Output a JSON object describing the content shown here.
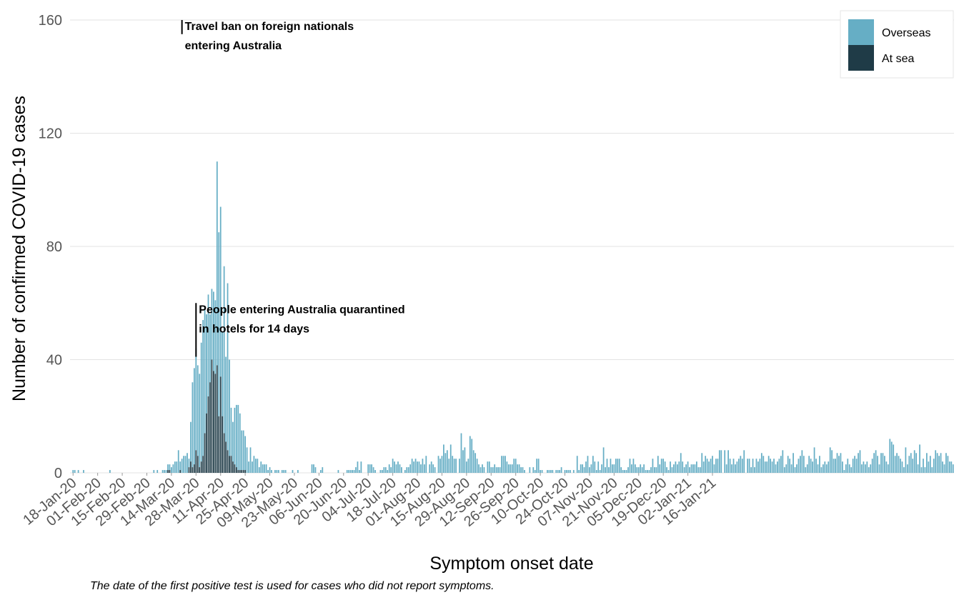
{
  "chart_data": {
    "type": "bar",
    "stacked": true,
    "xlabel": "Symptom onset date",
    "ylabel": "Number of confirmed COVID-19 cases",
    "ylim": [
      0,
      160
    ],
    "yticks": [
      0,
      40,
      80,
      120,
      160
    ],
    "grid": "horizontal",
    "legend_position": "top-right",
    "x_start": "2020-01-18",
    "x_tick_labels": [
      "18-Jan-20",
      "01-Feb-20",
      "15-Feb-20",
      "29-Feb-20",
      "14-Mar-20",
      "28-Mar-20",
      "11-Apr-20",
      "25-Apr-20",
      "09-May-20",
      "23-May-20",
      "06-Jun-20",
      "20-Jun-20",
      "04-Jul-20",
      "18-Jul-20",
      "01-Aug-20",
      "15-Aug-20",
      "29-Aug-20",
      "12-Sep-20",
      "26-Sep-20",
      "10-Oct-20",
      "24-Oct-20",
      "07-Nov-20",
      "21-Nov-20",
      "05-Dec-20",
      "19-Dec-20",
      "02-Jan-21",
      "16-Jan-21"
    ],
    "series": [
      {
        "name": "Overseas",
        "color": "#66aec5",
        "values": [
          1,
          1,
          0,
          1,
          0,
          0,
          1,
          0,
          0,
          0,
          0,
          0,
          0,
          0,
          0,
          0,
          0,
          0,
          0,
          0,
          0,
          1,
          0,
          0,
          0,
          0,
          0,
          0,
          0,
          0,
          0,
          0,
          0,
          0,
          0,
          0,
          0,
          0,
          0,
          0,
          0,
          0,
          0,
          0,
          0,
          0,
          1,
          0,
          1,
          0,
          0,
          1,
          1,
          1,
          2,
          2,
          2,
          3,
          4,
          4,
          8,
          3,
          5,
          6,
          6,
          7,
          3,
          14,
          30,
          34,
          36,
          32,
          33,
          42,
          48,
          45,
          35,
          36,
          24,
          25,
          28,
          26,
          72,
          65,
          60,
          30,
          59,
          30,
          59,
          34,
          17,
          14,
          20,
          22,
          23,
          20,
          14,
          14,
          12,
          9,
          4,
          9,
          4,
          6,
          5,
          5,
          2,
          4,
          3,
          3,
          3,
          1,
          2,
          1,
          0,
          1,
          1,
          1,
          0,
          1,
          1,
          1,
          0,
          0,
          0,
          1,
          0,
          0,
          1,
          0,
          0,
          0,
          0,
          0,
          0,
          0,
          3,
          3,
          2,
          0,
          0,
          1,
          2,
          0,
          0,
          0,
          0,
          0,
          0,
          0,
          0,
          1,
          0,
          0,
          0,
          0,
          1,
          1,
          1,
          1,
          1,
          2,
          4,
          1,
          4,
          0,
          0,
          0,
          3,
          3,
          3,
          2,
          1,
          0,
          0,
          1,
          1,
          2,
          2,
          1,
          3,
          2,
          5,
          4,
          3,
          4,
          3,
          2,
          0,
          1,
          2,
          2,
          3,
          5,
          4,
          5,
          4,
          4,
          3,
          5,
          3,
          6,
          0,
          3,
          4,
          3,
          2,
          0,
          6,
          5,
          6,
          10,
          7,
          8,
          5,
          10,
          6,
          5,
          5,
          0,
          5,
          14,
          8,
          9,
          4,
          5,
          13,
          12,
          8,
          7,
          5,
          3,
          2,
          3,
          2,
          0,
          4,
          4,
          2,
          2,
          3,
          2,
          2,
          2,
          6,
          6,
          6,
          4,
          3,
          3,
          3,
          5,
          5,
          3,
          3,
          2,
          2,
          1,
          0,
          0,
          2,
          0,
          2,
          1,
          5,
          5,
          1,
          1,
          0,
          0,
          1,
          1,
          1,
          1,
          0,
          1,
          1,
          1,
          2,
          0,
          1,
          1,
          1,
          1,
          0,
          1,
          0,
          6,
          1,
          3,
          3,
          2,
          4,
          6,
          2,
          3,
          6,
          4,
          1,
          4,
          1,
          3,
          9,
          2,
          5,
          2,
          5,
          3,
          3,
          5,
          5,
          5,
          2,
          1,
          1,
          1,
          2,
          5,
          3,
          5,
          3,
          2,
          2,
          3,
          2,
          3,
          1,
          1,
          1,
          2,
          5,
          2,
          2,
          6,
          3,
          5,
          5,
          4,
          2,
          1,
          4,
          2,
          3,
          4,
          3,
          4,
          7,
          4,
          2,
          3,
          4,
          2,
          3,
          3,
          3,
          4,
          2,
          2,
          7,
          4,
          6,
          5,
          4,
          5,
          6,
          3,
          5,
          5,
          8,
          8,
          0,
          8,
          3,
          8,
          5,
          3,
          5,
          3,
          4,
          5,
          6,
          5,
          8,
          0,
          5,
          5,
          2,
          5,
          2,
          5,
          4,
          5,
          7,
          6,
          4,
          4,
          6,
          5,
          4,
          5,
          3,
          4,
          5,
          6,
          8,
          2,
          3,
          6,
          5,
          3,
          7,
          2,
          3,
          5,
          6,
          8,
          6,
          2,
          3,
          6,
          5,
          4,
          9,
          5,
          3,
          6,
          2,
          3,
          4,
          3,
          4,
          9,
          8,
          5,
          5,
          7,
          6,
          7,
          4,
          1,
          3,
          5,
          3,
          2,
          5,
          6,
          5,
          7,
          8,
          3,
          4,
          3,
          4,
          2,
          3,
          5,
          7,
          8,
          6,
          3,
          7,
          7,
          6,
          4,
          3,
          12,
          11,
          10,
          6,
          7,
          6,
          5,
          4,
          2,
          9,
          3,
          6,
          7,
          5,
          8,
          7,
          3,
          10,
          2,
          5,
          2,
          7,
          4,
          6,
          2,
          5,
          8,
          7,
          6,
          7,
          4,
          3,
          7,
          6,
          4,
          4,
          3
        ]
      },
      {
        "name": "At sea",
        "color": "#1f3b47",
        "values": [
          0,
          0,
          0,
          0,
          0,
          0,
          0,
          0,
          0,
          0,
          0,
          0,
          0,
          0,
          0,
          0,
          0,
          0,
          0,
          0,
          0,
          0,
          0,
          0,
          0,
          0,
          0,
          0,
          0,
          0,
          0,
          0,
          0,
          0,
          0,
          0,
          0,
          0,
          0,
          0,
          0,
          0,
          0,
          0,
          0,
          0,
          0,
          0,
          0,
          0,
          0,
          0,
          0,
          0,
          1,
          1,
          0,
          0,
          0,
          0,
          0,
          1,
          0,
          0,
          0,
          0,
          2,
          4,
          2,
          3,
          8,
          6,
          2,
          4,
          6,
          14,
          21,
          27,
          32,
          40,
          36,
          35,
          38,
          20,
          34,
          20,
          14,
          11,
          8,
          6,
          6,
          4,
          3,
          2,
          1,
          1,
          1,
          1,
          1,
          0,
          0,
          0,
          0,
          0,
          0,
          0,
          0,
          0,
          0,
          0,
          0,
          0,
          0,
          0,
          0,
          0,
          0,
          0,
          0,
          0,
          0,
          0,
          0,
          0,
          0,
          0,
          0,
          0,
          0,
          0,
          0,
          0,
          0,
          0,
          0,
          0,
          0,
          0,
          0,
          0,
          0,
          0,
          0,
          0,
          0,
          0,
          0,
          0,
          0,
          0,
          0,
          0,
          0,
          0,
          0,
          0,
          0,
          0,
          0,
          0,
          0,
          0,
          0,
          0,
          0,
          0,
          0,
          0,
          0,
          0,
          0,
          0,
          0,
          0,
          0,
          0,
          0,
          0,
          0,
          0,
          0,
          0,
          0,
          0,
          0,
          0,
          0,
          0,
          0,
          0,
          0,
          0,
          0,
          0,
          0,
          0,
          0,
          0,
          0,
          0,
          0,
          0,
          0,
          0,
          0,
          0,
          0,
          0,
          0,
          0,
          0,
          0,
          0,
          0,
          0,
          0,
          0,
          0,
          0,
          0,
          0,
          0,
          0,
          0,
          0,
          0,
          0,
          0,
          0,
          0,
          0,
          0,
          0,
          0,
          0,
          0,
          0,
          0,
          0,
          0,
          0,
          0,
          0,
          0,
          0,
          0,
          0,
          0,
          0,
          0,
          0,
          0,
          0,
          0,
          0,
          0,
          0,
          0,
          0,
          0,
          0,
          0,
          0,
          0,
          0,
          0,
          0,
          0,
          0,
          0,
          0,
          0,
          0,
          0,
          0,
          0,
          0,
          0,
          0,
          0,
          0,
          0,
          0,
          0,
          0,
          0,
          0,
          0,
          0,
          0,
          0,
          0,
          0,
          0,
          0,
          0,
          0,
          0,
          0,
          0,
          0,
          0,
          0,
          0,
          0,
          0,
          0,
          0,
          0,
          0,
          0,
          0,
          0,
          0,
          0,
          0,
          0,
          0,
          0,
          0,
          0,
          0,
          0,
          0,
          0,
          0,
          0,
          0,
          0,
          0,
          0,
          0,
          0,
          0,
          0,
          0,
          0,
          0,
          0,
          0,
          0,
          0,
          0,
          0,
          0,
          0,
          0,
          0,
          0,
          0,
          0,
          0,
          0,
          0,
          0,
          0,
          0,
          0,
          0,
          0,
          0,
          0,
          0,
          0,
          0,
          0,
          0,
          0,
          0,
          0,
          0,
          0,
          0,
          0,
          0,
          0,
          0,
          0,
          0,
          0,
          0,
          0,
          0,
          0,
          0,
          0,
          0,
          0,
          0,
          0,
          0,
          0,
          0,
          0,
          0,
          0,
          0,
          0,
          0,
          0,
          0,
          0,
          0,
          0,
          0,
          0,
          0,
          0,
          0,
          0,
          0,
          0,
          0,
          0,
          0,
          0,
          0,
          0,
          0,
          0,
          0,
          0,
          0,
          0,
          0,
          0,
          0,
          0,
          0,
          0,
          0,
          0,
          0,
          0,
          0,
          0,
          0,
          0,
          0,
          0,
          0,
          0,
          0,
          0,
          0,
          0,
          0,
          0,
          0,
          0,
          0,
          0,
          0,
          0,
          0,
          0,
          0,
          0,
          0,
          0,
          0,
          0,
          0,
          0,
          0,
          0,
          0,
          0,
          0,
          0,
          0,
          0,
          0,
          0,
          0,
          0,
          0,
          0,
          0,
          0,
          0,
          0,
          0,
          0,
          0,
          0,
          0,
          0,
          0,
          0,
          0,
          0,
          0,
          0,
          0,
          0,
          0,
          0,
          0,
          0,
          0,
          0,
          0,
          0,
          0,
          0,
          0,
          0,
          0,
          0,
          0,
          0,
          0,
          0,
          0,
          0,
          0,
          0,
          0,
          0,
          0,
          0
        ]
      }
    ],
    "annotations": [
      {
        "date": "2020-03-20",
        "lines": [
          "Travel ban on foreign nationals",
          "entering Australia"
        ],
        "y_top": 160,
        "y_bottom": 155
      },
      {
        "date": "2020-03-28",
        "lines": [
          "People entering Australia quarantined",
          "in hotels for 14 days"
        ],
        "y_top": 60,
        "y_bottom": 41
      }
    ]
  },
  "caption": "The date of the first positive test is used for cases who did not report symptoms."
}
